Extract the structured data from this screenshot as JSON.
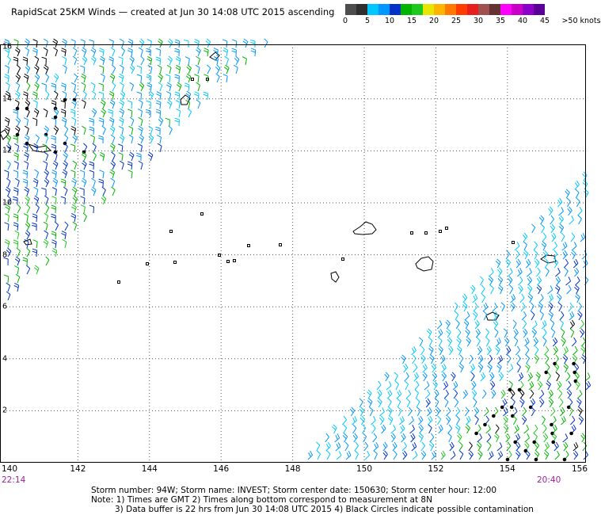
{
  "header": {
    "title": "RapidScat 25KM Winds — created at Jun 30 14:08 UTC 2015 ascending"
  },
  "legend": {
    "colors": [
      "#4d4d4d",
      "#2f2f2f",
      "#00c8ff",
      "#0096ff",
      "#0032c8",
      "#00b400",
      "#1ec81e",
      "#e6e600",
      "#ffb400",
      "#ff7800",
      "#ff3c00",
      "#e61e1e",
      "#a05050",
      "#643232",
      "#ff00ff",
      "#c800c8",
      "#8c00c8",
      "#5a0096"
    ],
    "labels": [
      "0",
      "5",
      "10",
      "15",
      "20",
      "25",
      "30",
      "35",
      "40",
      "45",
      ">50 knots"
    ]
  },
  "axes": {
    "x_ticks": [
      "140",
      "142",
      "144",
      "146",
      "148",
      "150",
      "152",
      "154",
      "156"
    ],
    "y_ticks": [
      "16",
      "14",
      "12",
      "10",
      "8",
      "6",
      "4",
      "2"
    ],
    "left_time": "22:14",
    "right_time": "20:40"
  },
  "map_data": {
    "lon_range": [
      140,
      156
    ],
    "lat_range": [
      0,
      16
    ],
    "swaths": [
      {
        "name": "upper-left",
        "color_set": [
          "#0096ff",
          "#00c8ff",
          "#00b400",
          "#0032c8",
          "#1ec81e"
        ]
      },
      {
        "name": "lower-right",
        "color_set": [
          "#00c8ff",
          "#0096ff",
          "#0032c8",
          "#00b400",
          "#1ec81e"
        ]
      }
    ]
  },
  "footer": {
    "line1": "Storm number: 94W;   Storm name: INVEST;   Storm center date: 150630;   Storm center hour: 12:00",
    "line2": "Note: 1) Times are GMT   2) Times along bottom correspond to measurement at 8N",
    "line3": "3) Data buffer is 22 hrs from Jun 30 14:08 UTC 2015   4) Black Circles indicate possible contamination"
  }
}
